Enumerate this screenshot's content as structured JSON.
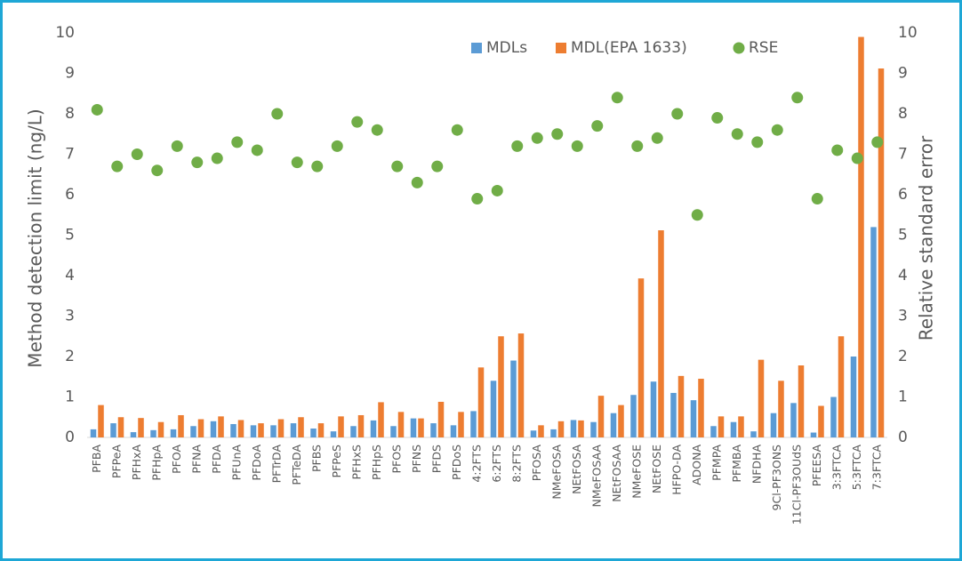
{
  "chart_data": {
    "type": "bar",
    "y_label": "Method detection limit (ng/L)",
    "y2_label": "Relative standard error",
    "categories": [
      "PFBA",
      "PFPeA",
      "PFHxA",
      "PFHpA",
      "PFOA",
      "PFNA",
      "PFDA",
      "PFUnA",
      "PFDoA",
      "PFTrDA",
      "PFTeDA",
      "PFBS",
      "PFPeS",
      "PFHxS",
      "PFHpS",
      "PFOS",
      "PFNS",
      "PFDS",
      "PFDoS",
      "4:2FTS",
      "6:2FTS",
      "8:2FTS",
      "PFOSA",
      "NMeFOSA",
      "NEtFOSA",
      "NMeFOSAA",
      "NEtFOSAA",
      "NMeFOSE",
      "NEtFOSE",
      "HFPO-DA",
      "ADONA",
      "PFMPA",
      "PFMBA",
      "NFDHA",
      "9Cl-PF3ONS",
      "11Cl-PF3OUdS",
      "PFEESA",
      "3:3FTCA",
      "5:3FTCA",
      "7:3FTCA"
    ],
    "series": [
      {
        "name": "MDLs",
        "type": "bar",
        "color": "#5b9bd5",
        "values": [
          0.2,
          0.35,
          0.13,
          0.18,
          0.2,
          0.28,
          0.4,
          0.33,
          0.3,
          0.3,
          0.35,
          0.22,
          0.15,
          0.28,
          0.42,
          0.28,
          0.47,
          0.35,
          0.3,
          0.65,
          1.4,
          1.9,
          0.17,
          0.2,
          0.43,
          0.38,
          0.6,
          1.05,
          1.38,
          1.1,
          0.92,
          0.28,
          0.38,
          0.15,
          0.6,
          0.85,
          0.12,
          1.0,
          2.0,
          5.2
        ]
      },
      {
        "name": "MDL(EPA 1633)",
        "type": "bar",
        "color": "#ed7d31",
        "values": [
          0.8,
          0.5,
          0.48,
          0.38,
          0.55,
          0.45,
          0.52,
          0.43,
          0.35,
          0.45,
          0.5,
          0.35,
          0.52,
          0.55,
          0.87,
          0.63,
          0.47,
          0.88,
          0.63,
          1.73,
          2.5,
          2.57,
          0.3,
          0.4,
          0.42,
          1.03,
          0.8,
          3.93,
          5.12,
          1.52,
          1.45,
          0.52,
          0.52,
          1.92,
          1.4,
          1.78,
          0.78,
          2.5,
          9.9,
          9.12
        ]
      },
      {
        "name": "RSE",
        "type": "scatter",
        "axis": "y2",
        "color": "#70ad47",
        "values": [
          8.1,
          6.7,
          7.0,
          6.6,
          7.2,
          6.8,
          6.9,
          7.3,
          7.1,
          8.0,
          6.8,
          6.7,
          7.2,
          7.8,
          7.6,
          6.7,
          6.3,
          6.7,
          7.6,
          5.9,
          6.1,
          7.2,
          7.4,
          7.5,
          7.2,
          7.7,
          8.4,
          7.2,
          7.4,
          8.0,
          5.5,
          7.9,
          7.5,
          7.3,
          7.6,
          8.4,
          5.9,
          7.1,
          6.9,
          7.3
        ]
      }
    ],
    "ylim": [
      0,
      10
    ],
    "yticks": [
      0,
      1,
      2,
      3,
      4,
      5,
      6,
      7,
      8,
      9,
      10
    ],
    "y2lim": [
      0,
      10
    ],
    "y2ticks": [
      0,
      1,
      2,
      3,
      4,
      5,
      6,
      7,
      8,
      9,
      10
    ],
    "grid": false,
    "legend": "top"
  }
}
